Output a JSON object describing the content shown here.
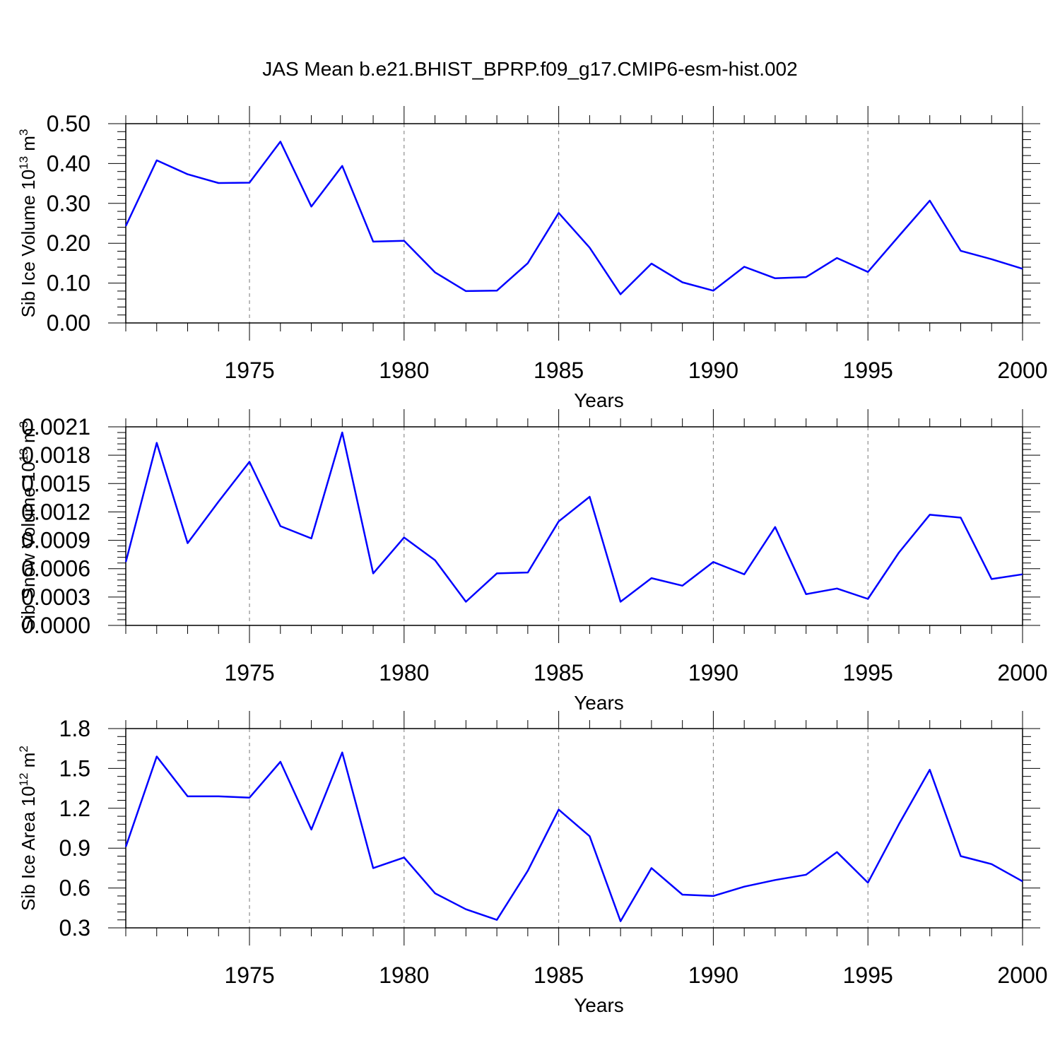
{
  "title": "JAS Mean b.e21.BHIST_BPRP.f09_g17.CMIP6-esm-hist.002",
  "line_color": "#0000ff",
  "chart_data": [
    {
      "type": "line",
      "title": "",
      "xlabel": "Years",
      "ylabel": "Sib Ice Volume 10",
      "ylabel_sup": "13",
      "ylabel_unit": " m",
      "ylabel_unit_sup": "3",
      "xlim": [
        1971,
        2000
      ],
      "ylim": [
        0.0,
        0.5
      ],
      "xticks": [
        1975,
        1980,
        1985,
        1990,
        1995,
        2000
      ],
      "yticks": [
        "0.00",
        "0.10",
        "0.20",
        "0.30",
        "0.40",
        "0.50"
      ],
      "grid": "vertical dashed at major x ticks",
      "x": [
        1971,
        1972,
        1973,
        1974,
        1975,
        1976,
        1977,
        1978,
        1979,
        1980,
        1981,
        1982,
        1983,
        1984,
        1985,
        1986,
        1987,
        1988,
        1989,
        1990,
        1991,
        1992,
        1993,
        1994,
        1995,
        1996,
        1997,
        1998,
        1999,
        2000
      ],
      "values": [
        0.243,
        0.408,
        0.373,
        0.351,
        0.352,
        0.455,
        0.292,
        0.394,
        0.204,
        0.206,
        0.127,
        0.08,
        0.081,
        0.15,
        0.276,
        0.189,
        0.072,
        0.149,
        0.102,
        0.081,
        0.141,
        0.112,
        0.115,
        0.163,
        0.128,
        0.218,
        0.307,
        0.181,
        0.16,
        0.136
      ]
    },
    {
      "type": "line",
      "title": "",
      "xlabel": "Years",
      "ylabel": "Sib Snow Volume 10",
      "ylabel_sup": "13",
      "ylabel_unit": " m",
      "ylabel_unit_sup": "3",
      "xlim": [
        1971,
        2000
      ],
      "ylim": [
        0.0,
        0.0021
      ],
      "xticks": [
        1975,
        1980,
        1985,
        1990,
        1995,
        2000
      ],
      "yticks": [
        "0.0000",
        "0.0003",
        "0.0006",
        "0.0009",
        "0.0012",
        "0.0015",
        "0.0018",
        "0.0021"
      ],
      "grid": "vertical dashed at major x ticks",
      "x": [
        1971,
        1972,
        1973,
        1974,
        1975,
        1976,
        1977,
        1978,
        1979,
        1980,
        1981,
        1982,
        1983,
        1984,
        1985,
        1986,
        1987,
        1988,
        1989,
        1990,
        1991,
        1992,
        1993,
        1994,
        1995,
        1996,
        1997,
        1998,
        1999,
        2000
      ],
      "values": [
        0.00067,
        0.00193,
        0.00087,
        0.00131,
        0.00173,
        0.00105,
        0.00092,
        0.00204,
        0.00055,
        0.00093,
        0.00069,
        0.00025,
        0.00055,
        0.00056,
        0.0011,
        0.00136,
        0.00025,
        0.0005,
        0.00042,
        0.00067,
        0.00054,
        0.00104,
        0.00033,
        0.00039,
        0.00028,
        0.00077,
        0.00117,
        0.00114,
        0.00049,
        0.00054
      ]
    },
    {
      "type": "line",
      "title": "",
      "xlabel": "Years",
      "ylabel": "Sib Ice Area 10",
      "ylabel_sup": "12",
      "ylabel_unit": " m",
      "ylabel_unit_sup": "2",
      "xlim": [
        1971,
        2000
      ],
      "ylim": [
        0.3,
        1.8
      ],
      "xticks": [
        1975,
        1980,
        1985,
        1990,
        1995,
        2000
      ],
      "yticks": [
        "0.3",
        "0.6",
        "0.9",
        "1.2",
        "1.5",
        "1.8"
      ],
      "grid": "vertical dashed at major x ticks",
      "x": [
        1971,
        1972,
        1973,
        1974,
        1975,
        1976,
        1977,
        1978,
        1979,
        1980,
        1981,
        1982,
        1983,
        1984,
        1985,
        1986,
        1987,
        1988,
        1989,
        1990,
        1991,
        1992,
        1993,
        1994,
        1995,
        1996,
        1997,
        1998,
        1999,
        2000
      ],
      "values": [
        0.91,
        1.59,
        1.29,
        1.29,
        1.28,
        1.55,
        1.04,
        1.62,
        0.75,
        0.83,
        0.56,
        0.44,
        0.36,
        0.73,
        1.19,
        0.99,
        0.35,
        0.75,
        0.55,
        0.54,
        0.61,
        0.66,
        0.7,
        0.87,
        0.64,
        1.08,
        1.49,
        0.84,
        0.78,
        0.65
      ]
    }
  ]
}
